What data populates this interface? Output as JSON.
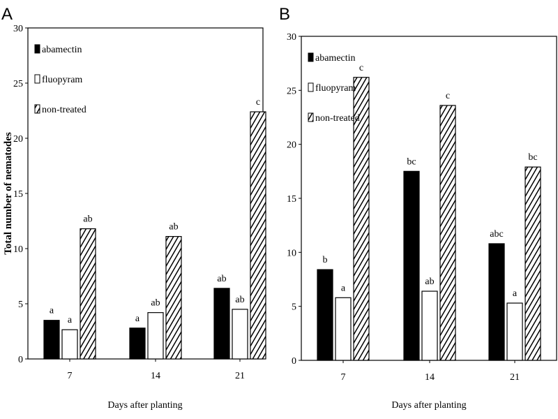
{
  "chart_data": [
    {
      "type": "bar",
      "panel": "A",
      "title": "",
      "xlabel": "Days after planting",
      "ylabel": "Total number of nematodes",
      "ylim": [
        0,
        30
      ],
      "yticks": [
        0,
        5,
        10,
        15,
        20,
        25,
        30
      ],
      "categories": [
        "7",
        "14",
        "21"
      ],
      "legend_position": "top-left",
      "series": [
        {
          "name": "abamectin",
          "pattern": "solid",
          "values": [
            3.5,
            2.8,
            6.4
          ],
          "labels": [
            "a",
            "a",
            "ab"
          ]
        },
        {
          "name": "fluopyram",
          "pattern": "open",
          "values": [
            2.65,
            4.2,
            4.5
          ],
          "labels": [
            "a",
            "ab",
            "ab"
          ]
        },
        {
          "name": "non-treated",
          "pattern": "hatched",
          "values": [
            11.8,
            11.1,
            22.4
          ],
          "labels": [
            "ab",
            "ab",
            "c"
          ]
        }
      ]
    },
    {
      "type": "bar",
      "panel": "B",
      "title": "",
      "xlabel": "Days after planting",
      "ylabel": "",
      "ylim": [
        0,
        30
      ],
      "yticks": [
        0,
        5,
        10,
        15,
        20,
        25,
        30
      ],
      "categories": [
        "7",
        "14",
        "21"
      ],
      "legend_position": "top-left",
      "series": [
        {
          "name": "abamectin",
          "pattern": "solid",
          "values": [
            8.4,
            17.5,
            10.8
          ],
          "labels": [
            "b",
            "bc",
            "abc"
          ]
        },
        {
          "name": "fluopyram",
          "pattern": "open",
          "values": [
            5.8,
            6.4,
            5.3
          ],
          "labels": [
            "a",
            "ab",
            "a"
          ]
        },
        {
          "name": "non-treated",
          "pattern": "hatched",
          "values": [
            26.2,
            23.6,
            17.9
          ],
          "labels": [
            "c",
            "c",
            "bc"
          ]
        }
      ]
    }
  ],
  "colors": {
    "solid": "#000000",
    "open": "#ffffff",
    "line": "#000000"
  }
}
